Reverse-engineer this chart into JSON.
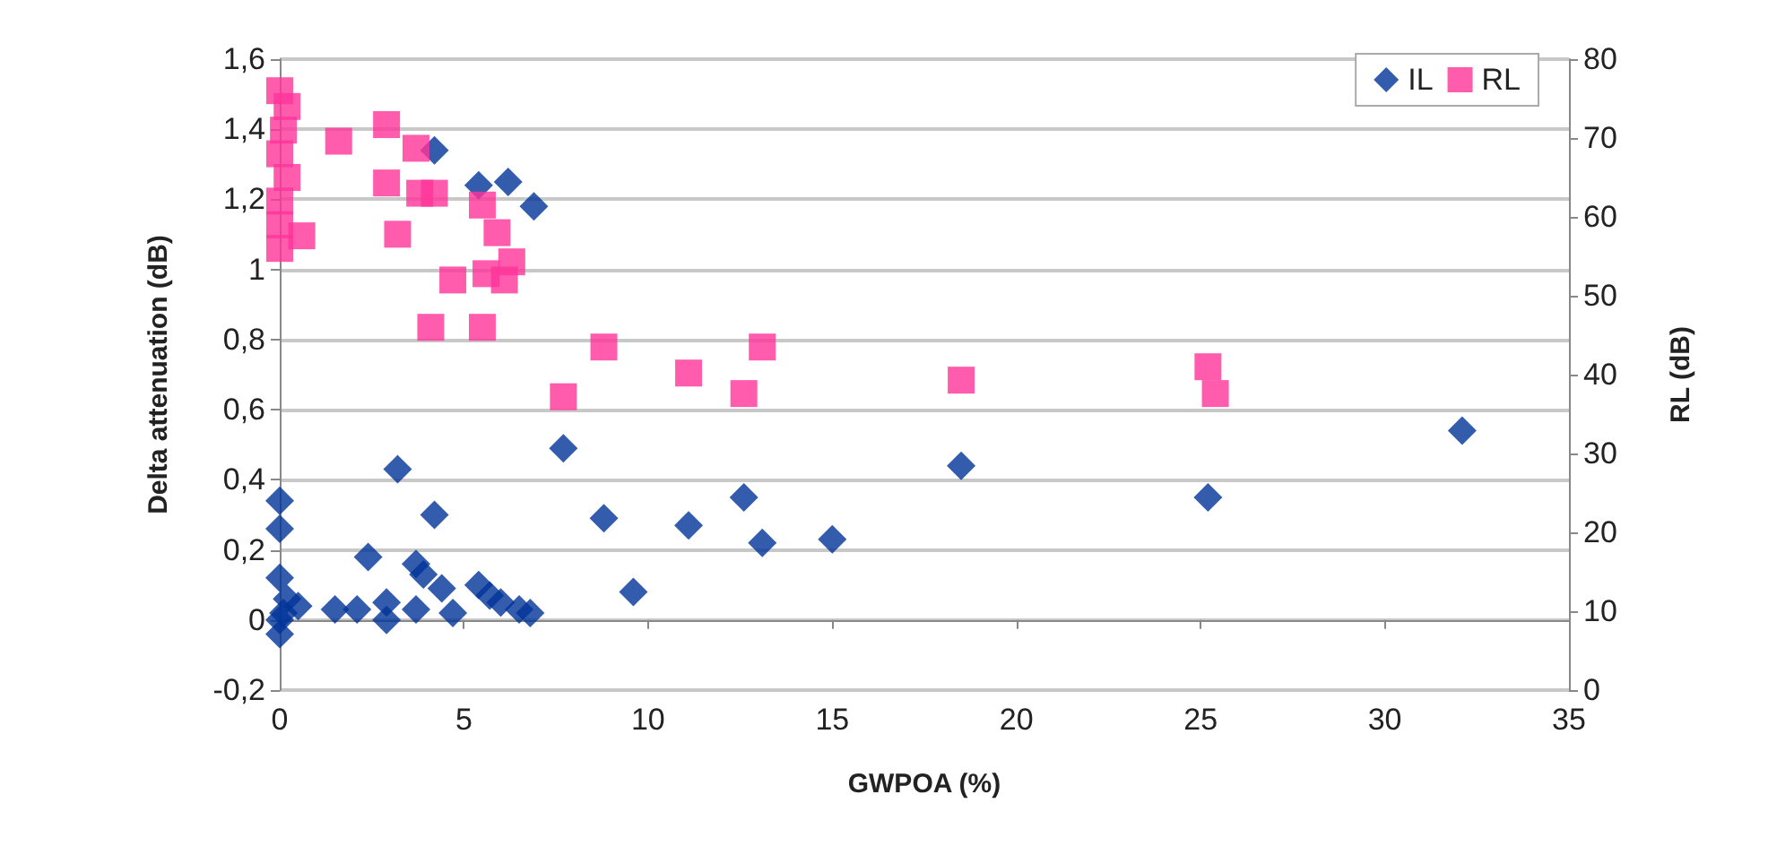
{
  "chart_data": {
    "type": "scatter",
    "xlabel": "GWPOA (%)",
    "ylabel": "Delta attenuation (dB)",
    "y2label": "RL (dB)",
    "xlim": [
      0,
      35
    ],
    "xticks": [
      0,
      5,
      10,
      15,
      20,
      25,
      30,
      35
    ],
    "ylim": [
      -0.2,
      1.6
    ],
    "yticks": [
      {
        "value": -0.2,
        "label": "-0,2"
      },
      0,
      {
        "value": 0.2,
        "label": "0,2"
      },
      {
        "value": 0.4,
        "label": "0,4"
      },
      {
        "value": 0.6,
        "label": "0,6"
      },
      {
        "value": 0.8,
        "label": "0,8"
      },
      1,
      {
        "value": 1.2,
        "label": "1,2"
      },
      {
        "value": 1.4,
        "label": "1,4"
      },
      {
        "value": 1.6,
        "label": "1,6"
      }
    ],
    "y2lim": [
      0,
      80
    ],
    "y2ticks": [
      0,
      10,
      20,
      30,
      40,
      50,
      60,
      70,
      80
    ],
    "grid": "y",
    "legend": "top right",
    "series": [
      {
        "name": "IL",
        "color": "#003399",
        "marker": "diamond",
        "x": [
          4.2,
          5.4,
          6.2,
          6.9,
          7.7,
          3.2,
          0,
          0,
          4.2,
          8.8,
          11.1,
          12.6,
          13.1,
          15,
          18.5,
          25.2,
          32.1,
          9.6,
          2.4,
          3.7,
          3.9,
          4.4,
          4.7,
          3.7,
          2.9,
          2.9,
          1.5,
          2.1,
          5.4,
          5.7,
          6.0,
          6.5,
          6.8,
          0,
          0,
          0,
          0.2,
          0.5,
          0.1
        ],
        "values": [
          1.34,
          1.24,
          1.25,
          1.18,
          0.49,
          0.43,
          0.34,
          0.26,
          0.3,
          0.29,
          0.27,
          0.35,
          0.22,
          0.23,
          0.44,
          0.35,
          0.54,
          0.08,
          0.18,
          0.16,
          0.13,
          0.09,
          0.02,
          0.03,
          0.05,
          0,
          0.03,
          0.03,
          0.1,
          0.07,
          0.05,
          0.03,
          0.02,
          0.12,
          0,
          -0.04,
          0.06,
          0.04,
          0.02
        ]
      },
      {
        "name": "RL",
        "color": "#ff3399",
        "marker": "square",
        "axis": "y2",
        "x": [
          0,
          0.1,
          0,
          0,
          0,
          0,
          0.2,
          0.2,
          0.6,
          1.6,
          2.9,
          2.9,
          3.2,
          3.7,
          3.8,
          4.2,
          4.1,
          4.7,
          5.5,
          5.9,
          5.5,
          5.6,
          6.1,
          6.3,
          7.7,
          8.8,
          11.1,
          12.6,
          13.1,
          18.5,
          25.2,
          25.4
        ],
        "values": [
          76,
          71,
          68,
          62,
          59,
          56,
          74,
          65,
          57.6,
          69.6,
          71.7,
          64.3,
          57.8,
          68.7,
          63,
          63,
          46,
          52,
          61.5,
          58,
          46,
          52.8,
          52,
          54.3,
          37.2,
          43.5,
          40.2,
          37.6,
          43.5,
          39.3,
          41,
          37.6
        ]
      }
    ]
  }
}
